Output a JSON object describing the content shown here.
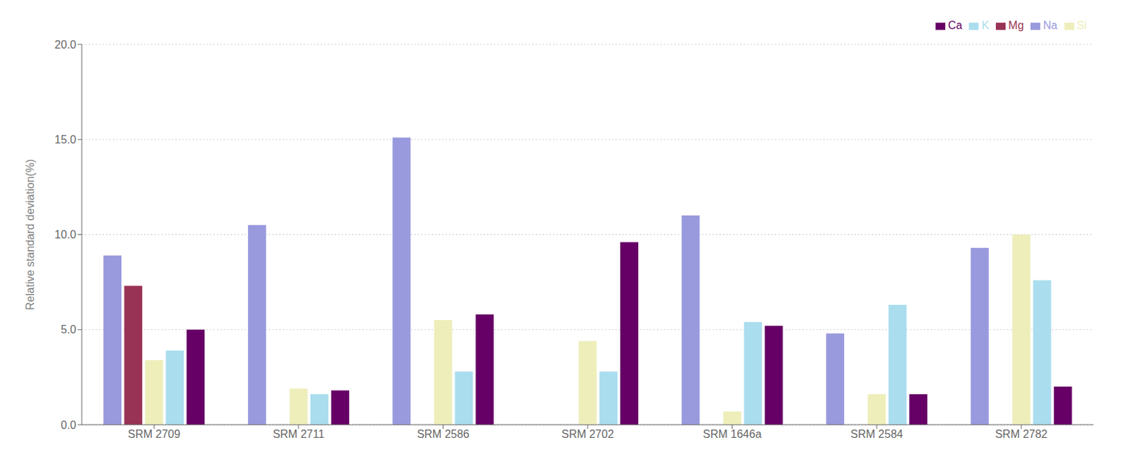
{
  "chart_data": {
    "type": "bar",
    "categories": [
      "SRM 2709",
      "SRM 2711",
      "SRM 2586",
      "SRM 2702",
      "SRM 1646a",
      "SRM 2584",
      "SRM 2782"
    ],
    "series": [
      {
        "name": "Na",
        "color": "#9999dd",
        "values": [
          8.9,
          10.5,
          15.1,
          0.0,
          11.0,
          4.8,
          9.3
        ]
      },
      {
        "name": "Mg",
        "color": "#993355",
        "values": [
          7.3,
          0.0,
          0.0,
          0.0,
          0.0,
          0.0,
          0.0
        ]
      },
      {
        "name": "Si",
        "color": "#eeeebb",
        "values": [
          3.4,
          1.9,
          5.5,
          4.4,
          0.7,
          1.6,
          10.0
        ]
      },
      {
        "name": "K",
        "color": "#aaddee",
        "values": [
          3.9,
          1.6,
          2.8,
          2.8,
          5.4,
          6.3,
          7.6
        ]
      },
      {
        "name": "Ca",
        "color": "#660066",
        "values": [
          5.0,
          1.8,
          5.8,
          9.6,
          5.2,
          1.6,
          2.0
        ]
      }
    ],
    "ylabel": "Relative standard deviation(%)",
    "ylim": [
      0.0,
      20.0
    ],
    "yticks": [
      {
        "value": 0.0,
        "label": "0.0"
      },
      {
        "value": 5.0,
        "label": "5.0"
      },
      {
        "value": 10.0,
        "label": "10.0"
      },
      {
        "value": 15.0,
        "label": "15.0"
      },
      {
        "value": 20.0,
        "label": "20.0"
      }
    ],
    "grid": true,
    "legend": "upper right"
  }
}
